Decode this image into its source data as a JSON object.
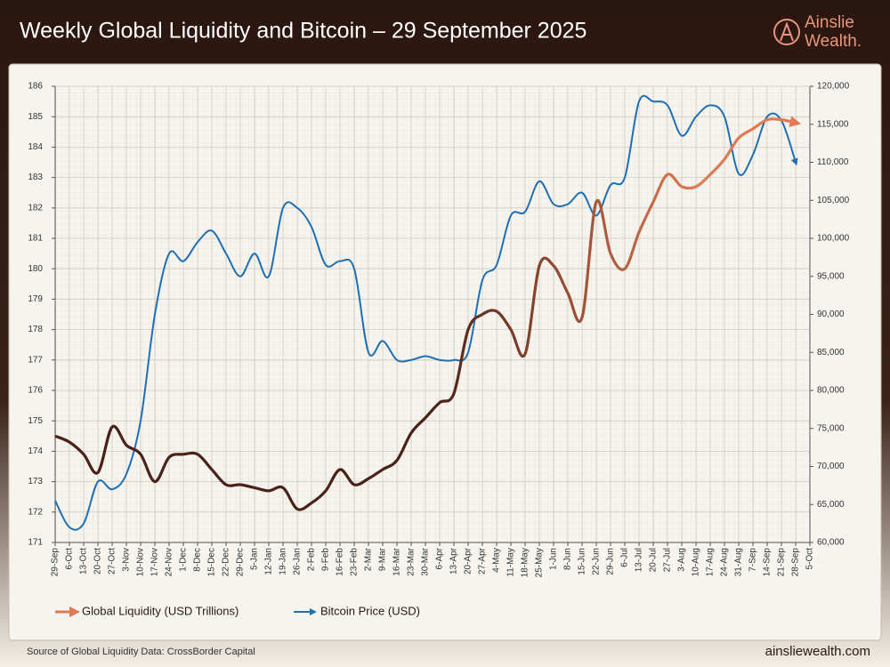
{
  "chart_data": {
    "type": "line",
    "title": "Weekly Global Liquidity and Bitcoin – 29 September 2025",
    "brand": [
      "Ainslie",
      "Wealth."
    ],
    "source": "Source of Global Liquidity Data: CrossBorder Capital",
    "website": "ainsliewealth.com",
    "categories": [
      "29-Sep",
      "6-Oct",
      "13-Oct",
      "20-Oct",
      "27-Oct",
      "3-Nov",
      "10-Nov",
      "17-Nov",
      "24-Nov",
      "1-Dec",
      "8-Dec",
      "15-Dec",
      "22-Dec",
      "29-Dec",
      "5-Jan",
      "12-Jan",
      "19-Jan",
      "26-Jan",
      "2-Feb",
      "9-Feb",
      "16-Feb",
      "23-Feb",
      "2-Mar",
      "9-Mar",
      "16-Mar",
      "23-Mar",
      "30-Mar",
      "6-Apr",
      "13-Apr",
      "20-Apr",
      "27-Apr",
      "4-May",
      "11-May",
      "18-May",
      "25-May",
      "1-Jun",
      "8-Jun",
      "15-Jun",
      "22-Jun",
      "29-Jun",
      "6-Jul",
      "13-Jul",
      "20-Jul",
      "27-Jul",
      "3-Aug",
      "10-Aug",
      "17-Aug",
      "24-Aug",
      "31-Aug",
      "7-Sep",
      "14-Sep",
      "21-Sep",
      "28-Sep",
      "5-Oct"
    ],
    "series": [
      {
        "name": "Global Liquidity (USD Trillions)",
        "color": "#df7a52",
        "values": [
          174.5,
          174.3,
          173.9,
          173.3,
          174.8,
          174.2,
          173.9,
          173.0,
          173.8,
          173.9,
          173.9,
          173.4,
          172.9,
          172.9,
          172.8,
          172.7,
          172.8,
          172.1,
          172.3,
          172.7,
          173.4,
          172.9,
          173.1,
          173.4,
          173.7,
          174.6,
          175.1,
          175.6,
          175.9,
          178.0,
          178.5,
          178.6,
          178.0,
          177.2,
          180.1,
          180.1,
          179.2,
          178.4,
          182.2,
          180.5,
          180.0,
          181.2,
          182.2,
          183.1,
          182.7,
          182.7,
          183.1,
          183.6,
          184.3,
          184.6,
          184.9,
          184.9,
          184.8,
          null
        ]
      },
      {
        "name": "Bitcoin Price (USD)",
        "color": "#1f6fb2",
        "axis": "y2",
        "values": [
          65500,
          62000,
          62500,
          68000,
          67000,
          69000,
          76000,
          90000,
          98000,
          97000,
          99500,
          101000,
          98000,
          95000,
          98000,
          95000,
          104000,
          104000,
          101500,
          96500,
          97000,
          96000,
          85000,
          86500,
          84000,
          84000,
          84500,
          84000,
          84000,
          85000,
          94500,
          96500,
          103000,
          103500,
          107500,
          104500,
          104500,
          106000,
          103000,
          107000,
          108000,
          118000,
          118000,
          117500,
          113500,
          116000,
          117500,
          116000,
          108500,
          111000,
          116000,
          115500,
          110000,
          null
        ]
      }
    ],
    "ylim": [
      171,
      186
    ],
    "yticks": [
      171,
      172,
      173,
      174,
      175,
      176,
      177,
      178,
      179,
      180,
      181,
      182,
      183,
      184,
      185,
      186
    ],
    "y2lim": [
      60000,
      120000
    ],
    "y2ticks": [
      {
        "value": 60000,
        "label": "60,000"
      },
      {
        "value": 65000,
        "label": "65,000"
      },
      {
        "value": 70000,
        "label": "70,000"
      },
      {
        "value": 75000,
        "label": "75,000"
      },
      {
        "value": 80000,
        "label": "80,000"
      },
      {
        "value": 85000,
        "label": "85,000"
      },
      {
        "value": 90000,
        "label": "90,000"
      },
      {
        "value": 95000,
        "label": "95,000"
      },
      {
        "value": 100000,
        "label": "100,000"
      },
      {
        "value": 105000,
        "label": "105,000"
      },
      {
        "value": 110000,
        "label": "110,000"
      },
      {
        "value": 115000,
        "label": "115,000"
      },
      {
        "value": 120000,
        "label": "120,000"
      }
    ],
    "grid": true,
    "legend": "bottom"
  }
}
